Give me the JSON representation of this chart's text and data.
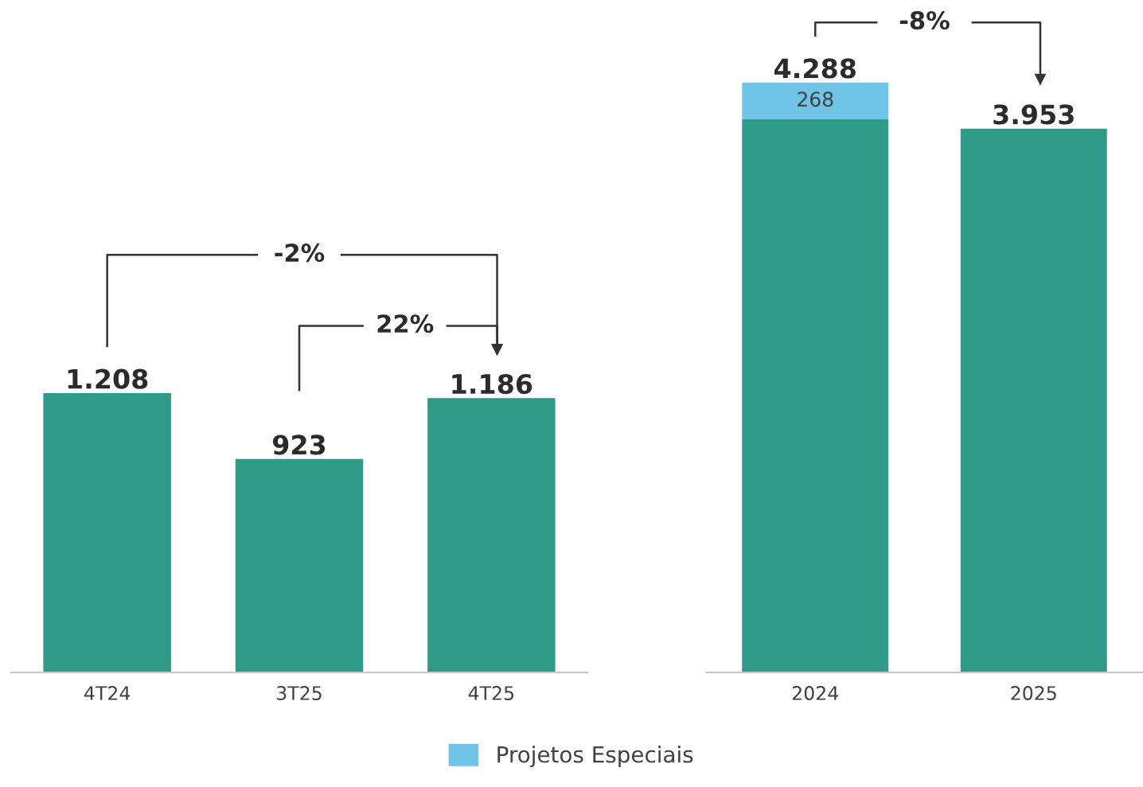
{
  "chart_data": [
    {
      "type": "bar",
      "categories": [
        "4T24",
        "3T25",
        "4T25"
      ],
      "values": [
        1208,
        923,
        1186
      ],
      "color": "#309a88",
      "value_labels": [
        "1.208",
        "923",
        "1.186"
      ],
      "annotations": [
        "-2%",
        "22%"
      ],
      "grid": false
    },
    {
      "type": "bar",
      "stacked": true,
      "categories": [
        "2024",
        "2025"
      ],
      "series": [
        {
          "color": "#309a88",
          "values": [
            4020,
            3953
          ]
        },
        {
          "name": "Projetos Especiais",
          "color": "#70c4e8",
          "values": [
            268,
            null
          ],
          "value_labels": [
            "268",
            null
          ]
        }
      ],
      "totals": [
        "4.288",
        "3.953"
      ],
      "annotations": [
        "-8%"
      ],
      "legend": "bottom",
      "grid": false
    }
  ]
}
